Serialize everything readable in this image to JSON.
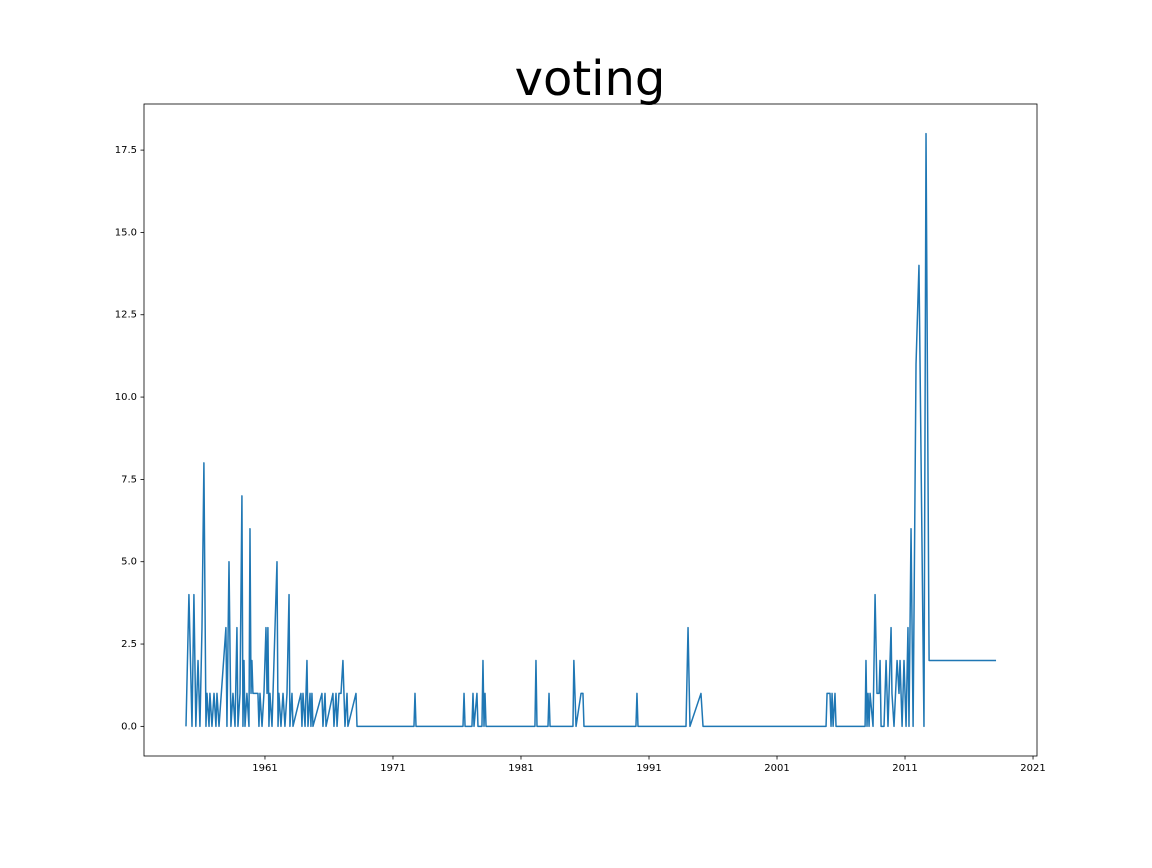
{
  "chart_data": {
    "type": "line",
    "title": "voting",
    "color": "#1f77b4",
    "x": [
      1954.83,
      1955.06,
      1955.3,
      1955.45,
      1955.6,
      1955.77,
      1955.92,
      1956.08,
      1956.23,
      1956.39,
      1956.47,
      1956.63,
      1956.7,
      1956.86,
      1957.02,
      1957.17,
      1957.25,
      1957.41,
      1957.95,
      1958.03,
      1958.19,
      1958.34,
      1958.5,
      1958.66,
      1958.81,
      1958.89,
      1959.05,
      1959.2,
      1959.28,
      1959.36,
      1959.44,
      1959.59,
      1959.75,
      1959.83,
      1959.91,
      1959.98,
      1960.06,
      1960.45,
      1960.53,
      1960.61,
      1960.77,
      1960.92,
      1961.08,
      1961.16,
      1961.23,
      1961.31,
      1961.39,
      1961.55,
      1961.94,
      1962.02,
      1962.09,
      1962.25,
      1962.41,
      1962.56,
      1962.72,
      1962.88,
      1962.95,
      1963.11,
      1963.19,
      1963.81,
      1963.89,
      1963.97,
      1964.13,
      1964.28,
      1964.36,
      1964.52,
      1964.59,
      1964.67,
      1964.75,
      1965.45,
      1965.53,
      1965.69,
      1965.77,
      1966.31,
      1966.39,
      1966.55,
      1966.63,
      1966.78,
      1966.94,
      1967.09,
      1967.25,
      1967.41,
      1967.48,
      1968.11,
      1968.19,
      1972.64,
      1972.72,
      1972.8,
      1976.47,
      1976.55,
      1976.63,
      1977.17,
      1977.25,
      1977.33,
      1977.56,
      1977.64,
      1977.95,
      1978.03,
      1978.11,
      1978.19,
      1978.27,
      1982.09,
      1982.17,
      1982.25,
      1983.11,
      1983.19,
      1983.27,
      1985.06,
      1985.13,
      1985.3,
      1985.69,
      1985.84,
      1985.92,
      1989.98,
      1990.06,
      1990.14,
      1993.89,
      1994.05,
      1994.2,
      1995.06,
      1995.22,
      2004.83,
      2004.91,
      2005.14,
      2005.22,
      2005.3,
      2005.38,
      2005.53,
      2005.61,
      2007.88,
      2007.95,
      2008.03,
      2008.11,
      2008.19,
      2008.27,
      2008.5,
      2008.66,
      2008.81,
      2008.97,
      2009.05,
      2009.13,
      2009.36,
      2009.52,
      2009.67,
      2009.91,
      2009.98,
      2010.14,
      2010.38,
      2010.53,
      2010.61,
      2010.69,
      2010.77,
      2010.92,
      2011.08,
      2011.23,
      2011.31,
      2011.47,
      2011.63,
      2011.86,
      2012.09,
      2012.48,
      2012.64,
      2012.88,
      2018.11
    ],
    "values": [
      0,
      4,
      0,
      4,
      0,
      2,
      0,
      3,
      8,
      0,
      1,
      0,
      1,
      0,
      1,
      0,
      1,
      0,
      3,
      0,
      5,
      0,
      1,
      0,
      3,
      0,
      1,
      7,
      0,
      2,
      0,
      1,
      0,
      6,
      1,
      2,
      1,
      1,
      0,
      1,
      0,
      1,
      3,
      1,
      3,
      0,
      1,
      0,
      5,
      0,
      1,
      0,
      1,
      0,
      1,
      4,
      0,
      1,
      0,
      1,
      0,
      1,
      0,
      2,
      0,
      1,
      0,
      1,
      0,
      1,
      0,
      1,
      0,
      1,
      0,
      1,
      0,
      1,
      1,
      2,
      0,
      1,
      0,
      1,
      0,
      0,
      1,
      0,
      0,
      1,
      0,
      0,
      1,
      0,
      1,
      0,
      0,
      2,
      0,
      1,
      0,
      0,
      2,
      0,
      0,
      1,
      0,
      0,
      2,
      0,
      1,
      1,
      0,
      0,
      1,
      0,
      0,
      3,
      0,
      1,
      0,
      0,
      1,
      1,
      0,
      1,
      0,
      1,
      0,
      0,
      2,
      0,
      1,
      0,
      1,
      0,
      4,
      1,
      1,
      2,
      0,
      0,
      2,
      0,
      3,
      1,
      0,
      2,
      1,
      2,
      1,
      0,
      2,
      0,
      3,
      0,
      6,
      0,
      11,
      14,
      0,
      18,
      2,
      2
    ],
    "xlim": [
      1951.55,
      2021.31
    ],
    "ylim": [
      -0.9,
      18.9
    ],
    "xticks": [
      1961,
      1971,
      1981,
      1991,
      2001,
      2011,
      2021
    ],
    "yticks": [
      {
        "value": 0,
        "label": "0.0"
      },
      {
        "value": 2.5,
        "label": "2.5"
      },
      {
        "value": 5,
        "label": "5.0"
      },
      {
        "value": 7.5,
        "label": "7.5"
      },
      {
        "value": 10,
        "label": "10.0"
      },
      {
        "value": 12.5,
        "label": "12.5"
      },
      {
        "value": 15,
        "label": "15.0"
      },
      {
        "value": 17.5,
        "label": "17.5"
      }
    ]
  }
}
